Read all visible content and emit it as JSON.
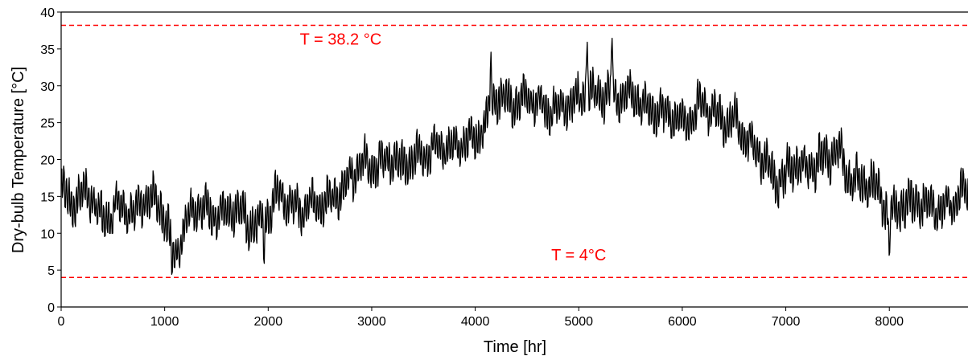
{
  "chart_data": {
    "type": "line",
    "xlabel": "Time [hr]",
    "ylabel": "Dry-bulb Temperature [°C]",
    "xlim": [
      0,
      8760
    ],
    "ylim": [
      0,
      40
    ],
    "xticks": [
      0,
      1000,
      2000,
      3000,
      4000,
      5000,
      6000,
      7000,
      8000
    ],
    "yticks": [
      0,
      5,
      10,
      15,
      20,
      25,
      30,
      35,
      40
    ],
    "grid": false,
    "reference_lines": [
      {
        "y": 38.2,
        "label": "T = 38.2 °C",
        "label_x": 2700,
        "label_y": 35.6,
        "color": "#ff0000",
        "style": "dashed"
      },
      {
        "y": 4,
        "label": "T = 4°C",
        "label_x": 5000,
        "label_y": 6.3,
        "color": "#ff0000",
        "style": "dashed"
      }
    ],
    "series": [
      {
        "color": "#000000",
        "points": [
          [
            0,
            15.8
          ],
          [
            100,
            14.0
          ],
          [
            200,
            15.6
          ],
          [
            300,
            14.8
          ],
          [
            400,
            11.6
          ],
          [
            500,
            13.2
          ],
          [
            600,
            13.6
          ],
          [
            700,
            12.0
          ],
          [
            800,
            14.8
          ],
          [
            900,
            14.4
          ],
          [
            1000,
            12.4
          ],
          [
            1050,
            9.5
          ],
          [
            1100,
            6.5
          ],
          [
            1200,
            11.5
          ],
          [
            1300,
            13.5
          ],
          [
            1400,
            13.2
          ],
          [
            1500,
            12.6
          ],
          [
            1600,
            12.8
          ],
          [
            1700,
            13.4
          ],
          [
            1800,
            11.2
          ],
          [
            1900,
            11.0
          ],
          [
            2000,
            12.5
          ],
          [
            2100,
            15.5
          ],
          [
            2200,
            14.0
          ],
          [
            2300,
            13.2
          ],
          [
            2400,
            14.2
          ],
          [
            2500,
            13.6
          ],
          [
            2600,
            14.8
          ],
          [
            2700,
            15.5
          ],
          [
            2800,
            17.6
          ],
          [
            2900,
            19.6
          ],
          [
            3000,
            18.8
          ],
          [
            3100,
            19.4
          ],
          [
            3200,
            20.4
          ],
          [
            3300,
            19.0
          ],
          [
            3400,
            20.2
          ],
          [
            3500,
            20.5
          ],
          [
            3600,
            21.6
          ],
          [
            3700,
            22.0
          ],
          [
            3800,
            21.8
          ],
          [
            3900,
            22.4
          ],
          [
            4000,
            23.0
          ],
          [
            4100,
            25.0
          ],
          [
            4200,
            28.6
          ],
          [
            4300,
            28.0
          ],
          [
            4400,
            27.4
          ],
          [
            4500,
            28.6
          ],
          [
            4600,
            27.8
          ],
          [
            4700,
            26.6
          ],
          [
            4800,
            26.8
          ],
          [
            4900,
            27.6
          ],
          [
            5000,
            28.2
          ],
          [
            5100,
            29.2
          ],
          [
            5200,
            28.6
          ],
          [
            5300,
            29.0
          ],
          [
            5400,
            28.2
          ],
          [
            5500,
            28.8
          ],
          [
            5600,
            27.6
          ],
          [
            5700,
            26.6
          ],
          [
            5800,
            26.4
          ],
          [
            5900,
            25.8
          ],
          [
            6000,
            25.2
          ],
          [
            6100,
            25.8
          ],
          [
            6200,
            27.8
          ],
          [
            6300,
            26.2
          ],
          [
            6400,
            24.8
          ],
          [
            6500,
            25.6
          ],
          [
            6600,
            23.0
          ],
          [
            6700,
            21.4
          ],
          [
            6800,
            20.2
          ],
          [
            6900,
            16.6
          ],
          [
            7000,
            18.0
          ],
          [
            7100,
            19.6
          ],
          [
            7200,
            18.2
          ],
          [
            7300,
            19.8
          ],
          [
            7400,
            20.4
          ],
          [
            7500,
            21.6
          ],
          [
            7600,
            17.6
          ],
          [
            7700,
            16.8
          ],
          [
            7800,
            16.8
          ],
          [
            7900,
            15.6
          ],
          [
            8000,
            12.6
          ],
          [
            8100,
            13.6
          ],
          [
            8200,
            14.2
          ],
          [
            8300,
            14.0
          ],
          [
            8400,
            13.6
          ],
          [
            8500,
            13.4
          ],
          [
            8600,
            14.0
          ],
          [
            8700,
            15.2
          ],
          [
            8760,
            15.4
          ]
        ],
        "hourly_variability_amplitude": 3.2,
        "peaks": [
          [
            1070,
            4.0
          ],
          [
            5320,
            38.2
          ],
          [
            5080,
            37.8
          ],
          [
            4150,
            35.8
          ],
          [
            8000,
            5.6
          ],
          [
            1960,
            5.2
          ]
        ]
      }
    ]
  }
}
